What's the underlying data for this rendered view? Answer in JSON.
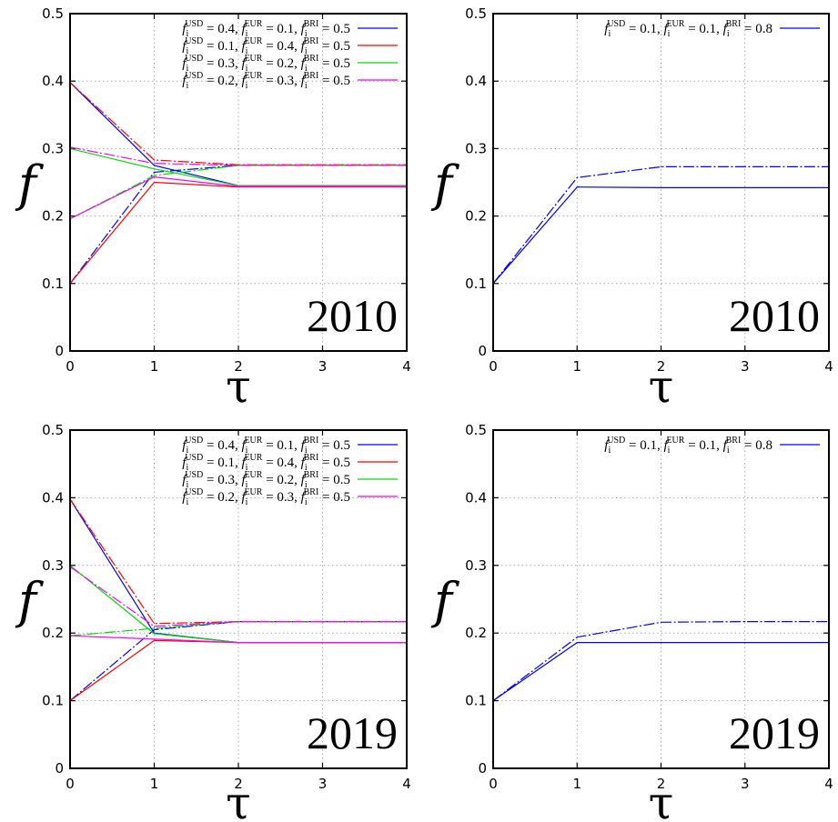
{
  "chart_data": [
    {
      "type": "line",
      "panel": "top-left",
      "year_label": "2010",
      "xlabel": "τ",
      "ylabel": "f",
      "xlim": [
        0,
        4
      ],
      "ylim": [
        0,
        0.5
      ],
      "xticks": [
        "0",
        "1",
        "2",
        "3",
        "4"
      ],
      "yticks": [
        "0",
        "0.1",
        "0.2",
        "0.3",
        "0.4",
        "0.5"
      ],
      "grid": true,
      "legend_position": "top-right",
      "x": [
        0,
        1,
        2,
        3,
        4
      ],
      "series": [
        {
          "name": "f_i^USD = 0.4, f_i^EUR = 0.1, f_i^BRI = 0.5",
          "color": "#0000ff",
          "style": "solid",
          "values": [
            0.398,
            0.275,
            0.245,
            0.245,
            0.245
          ]
        },
        {
          "name": "",
          "color": "#0000ff",
          "style": "dashed",
          "values": [
            0.1,
            0.265,
            0.275,
            0.275,
            0.275
          ]
        },
        {
          "name": "f_i^USD = 0.1, f_i^EUR = 0.4, f_i^BRI = 0.5",
          "color": "#ff0000",
          "style": "solid",
          "values": [
            0.1,
            0.25,
            0.243,
            0.243,
            0.243
          ]
        },
        {
          "name": "",
          "color": "#ff0000",
          "style": "dashed",
          "values": [
            0.398,
            0.283,
            0.276,
            0.276,
            0.276
          ]
        },
        {
          "name": "f_i^USD = 0.3, f_i^EUR = 0.2, f_i^BRI = 0.5",
          "color": "#00dd00",
          "style": "solid",
          "values": [
            0.3,
            0.27,
            0.245,
            0.245,
            0.245
          ]
        },
        {
          "name": "",
          "color": "#00dd00",
          "style": "dashed",
          "values": [
            0.196,
            0.26,
            0.275,
            0.275,
            0.275
          ]
        },
        {
          "name": "f_i^USD = 0.2, f_i^EUR = 0.3, f_i^BRI = 0.5",
          "color": "#ff00ff",
          "style": "solid",
          "values": [
            0.196,
            0.258,
            0.244,
            0.244,
            0.244
          ]
        },
        {
          "name": "",
          "color": "#ff00ff",
          "style": "dashed",
          "values": [
            0.302,
            0.278,
            0.275,
            0.275,
            0.275
          ]
        }
      ]
    },
    {
      "type": "line",
      "panel": "top-right",
      "year_label": "2010",
      "xlabel": "τ",
      "ylabel": "f",
      "xlim": [
        0,
        4
      ],
      "ylim": [
        0,
        0.5
      ],
      "xticks": [
        "0",
        "1",
        "2",
        "3",
        "4"
      ],
      "yticks": [
        "0",
        "0.1",
        "0.2",
        "0.3",
        "0.4",
        "0.5"
      ],
      "grid": true,
      "legend_position": "top-right",
      "x": [
        0,
        1,
        2,
        3,
        4
      ],
      "series": [
        {
          "name": "f_i^USD = 0.1, f_i^EUR = 0.1, f_i^BRI = 0.8",
          "color": "#0000ff",
          "style": "solid",
          "values": [
            0.1,
            0.243,
            0.242,
            0.242,
            0.242
          ]
        },
        {
          "name": "",
          "color": "#0000ff",
          "style": "dashed",
          "values": [
            0.1,
            0.257,
            0.273,
            0.273,
            0.273
          ]
        }
      ]
    },
    {
      "type": "line",
      "panel": "bottom-left",
      "year_label": "2019",
      "xlabel": "τ",
      "ylabel": "f",
      "xlim": [
        0,
        4
      ],
      "ylim": [
        0,
        0.5
      ],
      "xticks": [
        "0",
        "1",
        "2",
        "3",
        "4"
      ],
      "yticks": [
        "0",
        "0.1",
        "0.2",
        "0.3",
        "0.4",
        "0.5"
      ],
      "grid": true,
      "legend_position": "top-right",
      "x": [
        0,
        1,
        2,
        3,
        4
      ],
      "series": [
        {
          "name": "f_i^USD = 0.4, f_i^EUR = 0.1, f_i^BRI = 0.5",
          "color": "#0000ff",
          "style": "solid",
          "values": [
            0.398,
            0.2,
            0.186,
            0.186,
            0.186
          ]
        },
        {
          "name": "",
          "color": "#0000ff",
          "style": "dashed",
          "values": [
            0.1,
            0.205,
            0.217,
            0.217,
            0.217
          ]
        },
        {
          "name": "f_i^USD = 0.1, f_i^EUR = 0.4, f_i^BRI = 0.5",
          "color": "#ff0000",
          "style": "solid",
          "values": [
            0.1,
            0.189,
            0.186,
            0.186,
            0.186
          ]
        },
        {
          "name": "",
          "color": "#ff0000",
          "style": "dashed",
          "values": [
            0.398,
            0.214,
            0.217,
            0.217,
            0.217
          ]
        },
        {
          "name": "f_i^USD = 0.3, f_i^EUR = 0.2, f_i^BRI = 0.5",
          "color": "#00dd00",
          "style": "solid",
          "values": [
            0.3,
            0.199,
            0.186,
            0.186,
            0.186
          ]
        },
        {
          "name": "",
          "color": "#00dd00",
          "style": "dashed",
          "values": [
            0.196,
            0.207,
            0.217,
            0.217,
            0.217
          ]
        },
        {
          "name": "f_i^USD = 0.2, f_i^EUR = 0.3, f_i^BRI = 0.5",
          "color": "#ff00ff",
          "style": "solid",
          "values": [
            0.196,
            0.191,
            0.186,
            0.186,
            0.186
          ]
        },
        {
          "name": "",
          "color": "#ff00ff",
          "style": "dashed",
          "values": [
            0.298,
            0.21,
            0.217,
            0.217,
            0.217
          ]
        }
      ]
    },
    {
      "type": "line",
      "panel": "bottom-right",
      "year_label": "2019",
      "xlabel": "τ",
      "ylabel": "f",
      "xlim": [
        0,
        4
      ],
      "ylim": [
        0,
        0.5
      ],
      "xticks": [
        "0",
        "1",
        "2",
        "3",
        "4"
      ],
      "yticks": [
        "0",
        "0.1",
        "0.2",
        "0.3",
        "0.4",
        "0.5"
      ],
      "grid": true,
      "legend_position": "top-right",
      "x": [
        0,
        1,
        2,
        3,
        4
      ],
      "series": [
        {
          "name": "f_i^USD = 0.1, f_i^EUR = 0.1, f_i^BRI = 0.8",
          "color": "#0000ff",
          "style": "solid",
          "values": [
            0.1,
            0.186,
            0.186,
            0.186,
            0.186
          ]
        },
        {
          "name": "",
          "color": "#0000ff",
          "style": "dashed",
          "values": [
            0.1,
            0.194,
            0.216,
            0.217,
            0.217
          ]
        }
      ]
    }
  ]
}
